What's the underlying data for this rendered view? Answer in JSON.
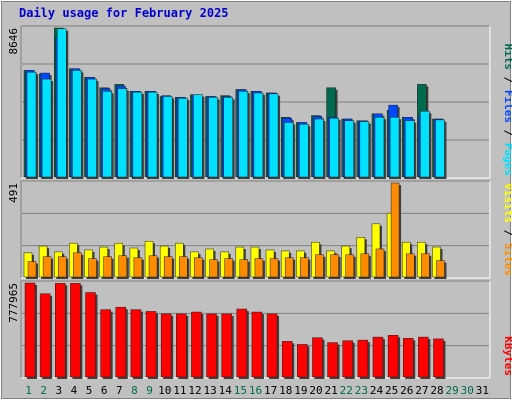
{
  "title": "Daily usage for February 2025",
  "colors": {
    "hits": "#006a4e",
    "files": "#0047ff",
    "pages": "#00e0ff",
    "visits": "#ffff00",
    "sites": "#ff8c00",
    "kbytes": "#ff0000",
    "weekend_label": "#006a4e",
    "weekday_label": "#000000"
  },
  "chart_data": [
    {
      "type": "bar",
      "ymax_label": "8646",
      "legend": [
        "Pages",
        "Files",
        "Hits"
      ],
      "categories": [
        "1",
        "2",
        "3",
        "4",
        "5",
        "6",
        "7",
        "8",
        "9",
        "10",
        "11",
        "12",
        "13",
        "14",
        "15",
        "16",
        "17",
        "18",
        "19",
        "20",
        "21",
        "22",
        "23",
        "24",
        "25",
        "26",
        "27",
        "28",
        "29",
        "30",
        "31"
      ],
      "series": [
        {
          "name": "Hits",
          "values": [
            6200,
            6000,
            8646,
            6300,
            5800,
            5200,
            5400,
            5000,
            5000,
            4700,
            4650,
            4800,
            4700,
            4750,
            5100,
            5000,
            4900,
            3500,
            3200,
            3600,
            5200,
            3400,
            3300,
            3700,
            3900,
            3500,
            5400,
            3400,
            0,
            0,
            0
          ]
        },
        {
          "name": "Files",
          "values": [
            6200,
            6050,
            8100,
            6300,
            5800,
            5150,
            5300,
            5000,
            5000,
            4750,
            4650,
            4800,
            4700,
            4700,
            5100,
            5000,
            4900,
            3450,
            3200,
            3550,
            3500,
            3400,
            3300,
            3700,
            4200,
            3500,
            3600,
            3400,
            0,
            0,
            0
          ]
        },
        {
          "name": "Pages",
          "values": [
            6100,
            5700,
            8600,
            6200,
            5700,
            5000,
            5150,
            4950,
            4950,
            4700,
            4600,
            4800,
            4650,
            4650,
            5000,
            4900,
            4850,
            3200,
            3100,
            3400,
            3450,
            3300,
            3250,
            3500,
            3500,
            3300,
            3850,
            3350,
            0,
            0,
            0
          ]
        }
      ]
    },
    {
      "type": "bar",
      "ymax_label": "491",
      "legend": [
        "Sites",
        "Visits"
      ],
      "series": [
        {
          "name": "Visits",
          "values": [
            130,
            165,
            135,
            180,
            145,
            160,
            180,
            155,
            190,
            165,
            180,
            135,
            150,
            135,
            160,
            160,
            145,
            140,
            140,
            185,
            140,
            165,
            210,
            280,
            335,
            185,
            185,
            160,
            0,
            0,
            0
          ]
        },
        {
          "name": "Sites",
          "values": [
            85,
            110,
            110,
            130,
            100,
            110,
            115,
            105,
            115,
            110,
            110,
            105,
            95,
            100,
            95,
            100,
            100,
            105,
            105,
            120,
            120,
            120,
            125,
            150,
            491,
            125,
            125,
            90,
            0,
            0,
            0
          ]
        }
      ]
    },
    {
      "type": "bar",
      "ymax_label": "777965",
      "legend": [
        "KBytes"
      ],
      "series": [
        {
          "name": "KBytes",
          "values": [
            777965,
            690000,
            775000,
            775000,
            700000,
            560000,
            580000,
            560000,
            545000,
            525000,
            525000,
            540000,
            525000,
            525000,
            565000,
            540000,
            525000,
            300000,
            275000,
            330000,
            290000,
            305000,
            310000,
            335000,
            350000,
            325000,
            335000,
            320000,
            0,
            0,
            0
          ]
        }
      ]
    }
  ]
}
